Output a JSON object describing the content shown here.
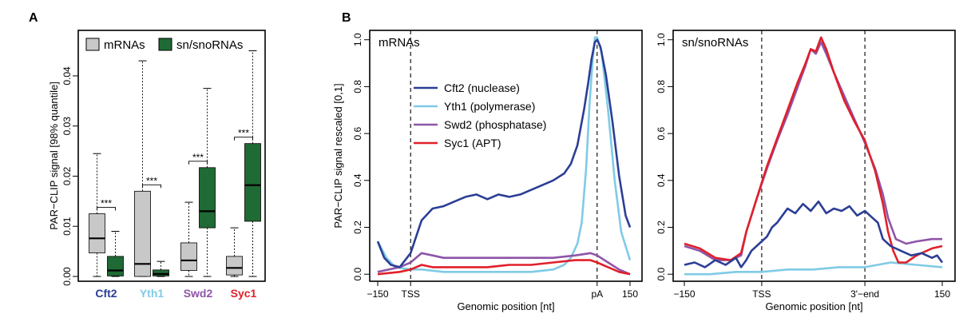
{
  "panel_labels": {
    "a": "A",
    "b": "B"
  },
  "colors": {
    "mrna_box": "#c8c8c8",
    "snorna_box": "#1f6a35",
    "cft2": "#2b3e95",
    "yth1": "#7fcbe6",
    "swd2": "#8e55a8",
    "syc1": "#e0202a"
  },
  "chart_data": [
    {
      "type": "boxplot",
      "title": "",
      "ylabel": "PAR−CLIP signal [98% quantile]",
      "ylim": [
        0,
        0.047
      ],
      "yticks": [
        {
          "v": 0.0,
          "t": "0.00"
        },
        {
          "v": 0.01,
          "t": "0.01"
        },
        {
          "v": 0.02,
          "t": "0.02"
        },
        {
          "v": 0.03,
          "t": "0.03"
        },
        {
          "v": 0.04,
          "t": "0.04"
        }
      ],
      "legend": {
        "position": "top",
        "entries": [
          "mRNAs",
          "sn/snoRNAs"
        ]
      },
      "significance": "***",
      "groups": [
        {
          "name": "Cft2",
          "color": "#2b3e95",
          "mrna": {
            "min": 0.0,
            "q1": 0.0047,
            "median": 0.0076,
            "q3": 0.0125,
            "max": 0.0245
          },
          "snorna": {
            "min": 0.0,
            "q1": 0.0001,
            "median": 0.0012,
            "q3": 0.004,
            "max": 0.009
          }
        },
        {
          "name": "Yth1",
          "color": "#7fcbe6",
          "mrna": {
            "min": 0.0,
            "q1": 0.0,
            "median": 0.0025,
            "q3": 0.017,
            "max": 0.043
          },
          "snorna": {
            "min": 0.0,
            "q1": 0.0001,
            "median": 0.0005,
            "q3": 0.0013,
            "max": 0.003
          }
        },
        {
          "name": "Swd2",
          "color": "#8e55a8",
          "mrna": {
            "min": 0.0,
            "q1": 0.0012,
            "median": 0.0032,
            "q3": 0.0067,
            "max": 0.0148
          },
          "snorna": {
            "min": 0.0,
            "q1": 0.0097,
            "median": 0.013,
            "q3": 0.0217,
            "max": 0.0375
          }
        },
        {
          "name": "Syc1",
          "color": "#e0202a",
          "mrna": {
            "min": 0.0,
            "q1": 0.0003,
            "median": 0.0017,
            "q3": 0.004,
            "max": 0.0097
          },
          "snorna": {
            "min": 0.0,
            "q1": 0.011,
            "median": 0.0182,
            "q3": 0.0265,
            "max": 0.045
          }
        }
      ]
    },
    {
      "type": "line",
      "label": "mRNAs",
      "ylabel": "PAR−CLIP signal rescaled [0,1]",
      "xlabel": "Genomic position [nt]",
      "ylim": [
        -0.03,
        1.04
      ],
      "yticks": [
        {
          "v": 0.0,
          "t": "0.0"
        },
        {
          "v": 0.2,
          "t": "0.2"
        },
        {
          "v": 0.4,
          "t": "0.4"
        },
        {
          "v": 0.6,
          "t": "0.6"
        },
        {
          "v": 0.8,
          "t": "0.8"
        },
        {
          "v": 1.0,
          "t": "1.0"
        }
      ],
      "xticks": [
        {
          "u": 0,
          "t": "−150"
        },
        {
          "u": 150,
          "t": "TSS"
        },
        {
          "u": 1000,
          "t": "pA"
        },
        {
          "u": 1150,
          "t": "150"
        }
      ],
      "vlines": [
        150,
        1000
      ],
      "series": [
        {
          "name": "Cft2 (nuclease)",
          "color": "#2b3e95",
          "points": [
            [
              0,
              0.14
            ],
            [
              30,
              0.07
            ],
            [
              60,
              0.04
            ],
            [
              100,
              0.03
            ],
            [
              150,
              0.09
            ],
            [
              200,
              0.23
            ],
            [
              250,
              0.28
            ],
            [
              300,
              0.29
            ],
            [
              350,
              0.31
            ],
            [
              400,
              0.33
            ],
            [
              450,
              0.34
            ],
            [
              500,
              0.32
            ],
            [
              550,
              0.34
            ],
            [
              600,
              0.33
            ],
            [
              650,
              0.34
            ],
            [
              700,
              0.36
            ],
            [
              750,
              0.38
            ],
            [
              800,
              0.4
            ],
            [
              850,
              0.43
            ],
            [
              880,
              0.47
            ],
            [
              910,
              0.55
            ],
            [
              940,
              0.7
            ],
            [
              960,
              0.82
            ],
            [
              975,
              0.92
            ],
            [
              990,
              0.99
            ],
            [
              1000,
              1.0
            ],
            [
              1015,
              0.97
            ],
            [
              1040,
              0.85
            ],
            [
              1070,
              0.65
            ],
            [
              1100,
              0.42
            ],
            [
              1130,
              0.25
            ],
            [
              1150,
              0.2
            ]
          ]
        },
        {
          "name": "Yth1 (polymerase)",
          "color": "#7fcbe6",
          "points": [
            [
              0,
              0.14
            ],
            [
              40,
              0.07
            ],
            [
              80,
              0.03
            ],
            [
              150,
              0.02
            ],
            [
              200,
              0.02
            ],
            [
              300,
              0.01
            ],
            [
              400,
              0.01
            ],
            [
              500,
              0.01
            ],
            [
              600,
              0.01
            ],
            [
              700,
              0.01
            ],
            [
              800,
              0.02
            ],
            [
              850,
              0.04
            ],
            [
              880,
              0.07
            ],
            [
              910,
              0.13
            ],
            [
              930,
              0.22
            ],
            [
              950,
              0.45
            ],
            [
              965,
              0.72
            ],
            [
              980,
              0.92
            ],
            [
              990,
              1.01
            ],
            [
              1000,
              1.01
            ],
            [
              1020,
              0.95
            ],
            [
              1050,
              0.7
            ],
            [
              1080,
              0.4
            ],
            [
              1110,
              0.18
            ],
            [
              1150,
              0.06
            ]
          ]
        },
        {
          "name": "Swd2 (phosphatase)",
          "color": "#8e55a8",
          "points": [
            [
              0,
              0.01
            ],
            [
              100,
              0.03
            ],
            [
              150,
              0.05
            ],
            [
              200,
              0.09
            ],
            [
              250,
              0.08
            ],
            [
              300,
              0.07
            ],
            [
              400,
              0.07
            ],
            [
              500,
              0.07
            ],
            [
              600,
              0.07
            ],
            [
              700,
              0.07
            ],
            [
              800,
              0.07
            ],
            [
              900,
              0.08
            ],
            [
              970,
              0.09
            ],
            [
              1000,
              0.08
            ],
            [
              1050,
              0.05
            ],
            [
              1100,
              0.02
            ],
            [
              1150,
              0.0
            ]
          ]
        },
        {
          "name": "Syc1 (APT)",
          "color": "#e0202a",
          "points": [
            [
              0,
              0.0
            ],
            [
              100,
              0.01
            ],
            [
              150,
              0.02
            ],
            [
              200,
              0.04
            ],
            [
              250,
              0.03
            ],
            [
              300,
              0.03
            ],
            [
              400,
              0.03
            ],
            [
              500,
              0.03
            ],
            [
              600,
              0.04
            ],
            [
              700,
              0.04
            ],
            [
              800,
              0.05
            ],
            [
              900,
              0.06
            ],
            [
              970,
              0.06
            ],
            [
              1000,
              0.05
            ],
            [
              1050,
              0.03
            ],
            [
              1100,
              0.01
            ],
            [
              1150,
              0.0
            ]
          ]
        }
      ]
    },
    {
      "type": "line",
      "label": "sn/snoRNAs",
      "xlabel": "Genomic position [nt]",
      "ylim": [
        -0.03,
        1.04
      ],
      "yticks": [
        {
          "v": 0.0,
          "t": "0.0"
        },
        {
          "v": 0.2,
          "t": "0.2"
        },
        {
          "v": 0.4,
          "t": "0.4"
        },
        {
          "v": 0.6,
          "t": "0.6"
        },
        {
          "v": 0.8,
          "t": "0.8"
        },
        {
          "v": 1.0,
          "t": "1.0"
        }
      ],
      "xticks": [
        {
          "u": 0,
          "t": "−150"
        },
        {
          "u": 150,
          "t": "TSS"
        },
        {
          "u": 350,
          "t": "3'−end"
        },
        {
          "u": 500,
          "t": "150"
        }
      ],
      "vlines": [
        150,
        350
      ],
      "series": [
        {
          "name": "Cft2 (nuclease)",
          "color": "#2b3e95",
          "points": [
            [
              0,
              0.04
            ],
            [
              20,
              0.05
            ],
            [
              40,
              0.03
            ],
            [
              60,
              0.06
            ],
            [
              80,
              0.04
            ],
            [
              100,
              0.07
            ],
            [
              110,
              0.03
            ],
            [
              120,
              0.06
            ],
            [
              130,
              0.1
            ],
            [
              145,
              0.13
            ],
            [
              160,
              0.16
            ],
            [
              170,
              0.2
            ],
            [
              180,
              0.22
            ],
            [
              190,
              0.25
            ],
            [
              200,
              0.28
            ],
            [
              215,
              0.26
            ],
            [
              230,
              0.3
            ],
            [
              245,
              0.27
            ],
            [
              260,
              0.31
            ],
            [
              275,
              0.26
            ],
            [
              290,
              0.28
            ],
            [
              305,
              0.27
            ],
            [
              320,
              0.29
            ],
            [
              335,
              0.25
            ],
            [
              350,
              0.27
            ],
            [
              365,
              0.24
            ],
            [
              375,
              0.22
            ],
            [
              385,
              0.15
            ],
            [
              400,
              0.12
            ],
            [
              420,
              0.1
            ],
            [
              440,
              0.08
            ],
            [
              460,
              0.09
            ],
            [
              480,
              0.07
            ],
            [
              490,
              0.08
            ],
            [
              500,
              0.05
            ]
          ]
        },
        {
          "name": "Yth1 (polymerase)",
          "color": "#7fcbe6",
          "points": [
            [
              0,
              0.0
            ],
            [
              50,
              0.0
            ],
            [
              100,
              0.01
            ],
            [
              150,
              0.01
            ],
            [
              200,
              0.02
            ],
            [
              250,
              0.02
            ],
            [
              300,
              0.03
            ],
            [
              350,
              0.03
            ],
            [
              400,
              0.05
            ],
            [
              450,
              0.04
            ],
            [
              500,
              0.03
            ]
          ]
        },
        {
          "name": "Swd2 (phosphatase)",
          "color": "#8e55a8",
          "points": [
            [
              0,
              0.12
            ],
            [
              30,
              0.1
            ],
            [
              60,
              0.06
            ],
            [
              90,
              0.06
            ],
            [
              110,
              0.08
            ],
            [
              120,
              0.18
            ],
            [
              140,
              0.32
            ],
            [
              160,
              0.45
            ],
            [
              180,
              0.57
            ],
            [
              200,
              0.68
            ],
            [
              220,
              0.8
            ],
            [
              235,
              0.89
            ],
            [
              245,
              0.96
            ],
            [
              255,
              0.94
            ],
            [
              265,
              0.99
            ],
            [
              275,
              0.94
            ],
            [
              290,
              0.86
            ],
            [
              310,
              0.76
            ],
            [
              330,
              0.66
            ],
            [
              350,
              0.56
            ],
            [
              370,
              0.45
            ],
            [
              385,
              0.34
            ],
            [
              395,
              0.24
            ],
            [
              410,
              0.15
            ],
            [
              430,
              0.13
            ],
            [
              450,
              0.14
            ],
            [
              480,
              0.15
            ],
            [
              500,
              0.15
            ]
          ]
        },
        {
          "name": "Syc1 (APT)",
          "color": "#e0202a",
          "points": [
            [
              0,
              0.13
            ],
            [
              30,
              0.11
            ],
            [
              60,
              0.07
            ],
            [
              90,
              0.06
            ],
            [
              110,
              0.09
            ],
            [
              120,
              0.18
            ],
            [
              140,
              0.32
            ],
            [
              160,
              0.46
            ],
            [
              180,
              0.58
            ],
            [
              200,
              0.7
            ],
            [
              220,
              0.82
            ],
            [
              235,
              0.9
            ],
            [
              245,
              0.96
            ],
            [
              255,
              0.95
            ],
            [
              265,
              1.01
            ],
            [
              275,
              0.96
            ],
            [
              290,
              0.86
            ],
            [
              310,
              0.74
            ],
            [
              330,
              0.65
            ],
            [
              350,
              0.57
            ],
            [
              370,
              0.44
            ],
            [
              385,
              0.3
            ],
            [
              395,
              0.18
            ],
            [
              405,
              0.1
            ],
            [
              415,
              0.05
            ],
            [
              430,
              0.05
            ],
            [
              450,
              0.08
            ],
            [
              480,
              0.11
            ],
            [
              500,
              0.12
            ]
          ]
        }
      ]
    }
  ]
}
